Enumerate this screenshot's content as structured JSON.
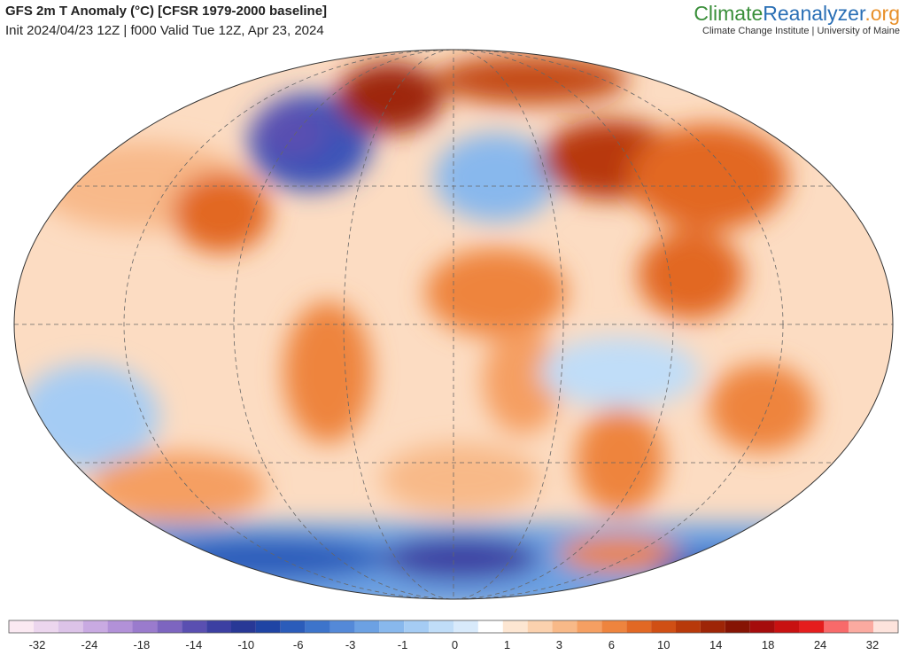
{
  "header": {
    "title": "GFS 2m T Anomaly (°C) [CFSR 1979-2000 baseline]",
    "subtitle": "Init 2024/04/23 12Z | f000 Valid Tue 12Z, Apr 23, 2024",
    "logo": {
      "part1": "Climate",
      "part2": "Reanalyzer",
      "part3": ".org"
    },
    "tagline": "Climate Change Institute | University of Maine"
  },
  "colorbar": {
    "colors": [
      "#fbe9f2",
      "#ecd6ee",
      "#dcc3e8",
      "#c9aae2",
      "#b291d8",
      "#9a7bcd",
      "#7d65c0",
      "#5a4fb1",
      "#3c3fa2",
      "#283896",
      "#1f44a4",
      "#2b5cba",
      "#3d74cb",
      "#5489d8",
      "#6ca1e3",
      "#88b8ed",
      "#a5ccf4",
      "#c0ddf8",
      "#d8eafb",
      "#ffffff",
      "#fde6d2",
      "#fbd1ae",
      "#f8b988",
      "#f59f62",
      "#ee843e",
      "#e26824",
      "#d04f14",
      "#b8390a",
      "#9e2507",
      "#861404",
      "#a50c0c",
      "#c81111",
      "#e51d1d",
      "#f86a6a",
      "#fbaaa0",
      "#fde3dc"
    ],
    "labels": [
      -32,
      -24,
      -18,
      -14,
      -10,
      -6,
      -3,
      -1,
      0,
      1,
      3,
      6,
      10,
      14,
      18,
      24,
      32
    ]
  }
}
